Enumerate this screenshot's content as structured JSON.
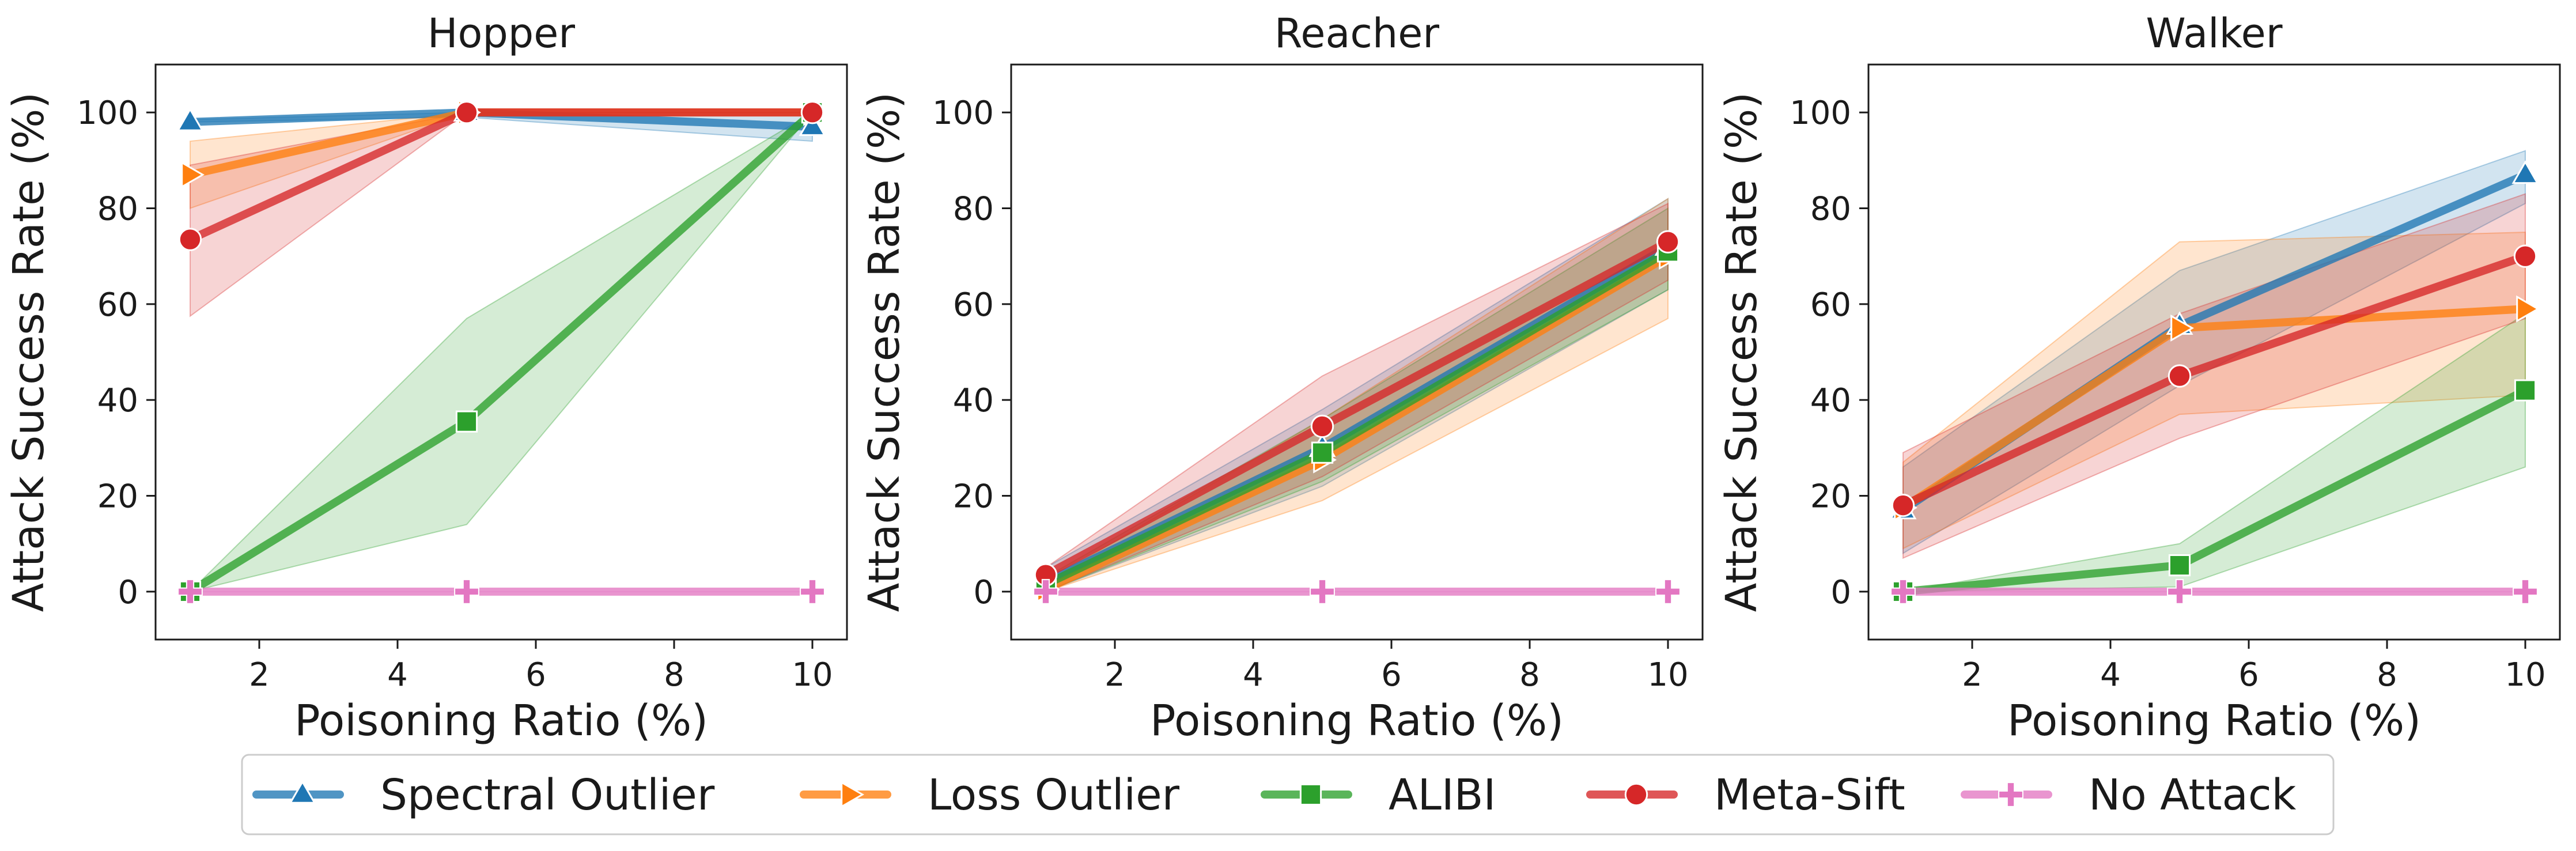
{
  "chart_data": {
    "type": "line",
    "x": [
      1,
      5,
      10
    ],
    "xlabel": "Poisoning Ratio (%)",
    "ylabel": "Attack Success Rate (%)",
    "xlim": [
      0.5,
      10.5
    ],
    "ylim": [
      -10,
      110
    ],
    "xticks": [
      "2",
      "4",
      "6",
      "8",
      "10"
    ],
    "yticks": [
      "0",
      "20",
      "40",
      "60",
      "80",
      "100"
    ],
    "series_meta": [
      {
        "name": "Spectral Outlier",
        "color": "#1f77b4",
        "marker": "triangle"
      },
      {
        "name": "Loss Outlier",
        "color": "#ff7f0e",
        "marker": "triangle-right"
      },
      {
        "name": "ALIBI",
        "color": "#2ca02c",
        "marker": "square"
      },
      {
        "name": "Meta-Sift",
        "color": "#d62728",
        "marker": "circle"
      },
      {
        "name": "No Attack",
        "color": "#e377c2",
        "marker": "plus"
      }
    ],
    "panels": [
      {
        "title": "Hopper",
        "series": [
          {
            "name": "Spectral Outlier",
            "values": [
              98,
              100,
              97
            ],
            "lower": [
              98,
              99,
              94
            ],
            "upper": [
              98.5,
              100,
              100
            ]
          },
          {
            "name": "Loss Outlier",
            "values": [
              87,
              100,
              100
            ],
            "lower": [
              80,
              100,
              100
            ],
            "upper": [
              94,
              100,
              100
            ]
          },
          {
            "name": "ALIBI",
            "values": [
              0,
              35.5,
              100
            ],
            "lower": [
              0,
              14,
              100
            ],
            "upper": [
              0,
              57,
              100
            ]
          },
          {
            "name": "Meta-Sift",
            "values": [
              73.5,
              100,
              100
            ],
            "lower": [
              57.5,
              100,
              100
            ],
            "upper": [
              89,
              100,
              100
            ]
          },
          {
            "name": "No Attack",
            "values": [
              0,
              0,
              0
            ],
            "lower": [
              0,
              0,
              0
            ],
            "upper": [
              0,
              0,
              0
            ]
          }
        ]
      },
      {
        "title": "Reacher",
        "series": [
          {
            "name": "Spectral Outlier",
            "values": [
              2,
              30,
              72
            ],
            "lower": [
              0,
              22,
              63
            ],
            "upper": [
              5,
              38,
              82
            ]
          },
          {
            "name": "Loss Outlier",
            "values": [
              0.5,
              27.5,
              70
            ],
            "lower": [
              0,
              19,
              57
            ],
            "upper": [
              2,
              36,
              82
            ]
          },
          {
            "name": "ALIBI",
            "values": [
              1.5,
              29,
              71
            ],
            "lower": [
              0,
              23,
              63
            ],
            "upper": [
              3,
              36,
              80
            ]
          },
          {
            "name": "Meta-Sift",
            "values": [
              3.5,
              34.5,
              73
            ],
            "lower": [
              0,
              24,
              65
            ],
            "upper": [
              5,
              45,
              81
            ]
          },
          {
            "name": "No Attack",
            "values": [
              0,
              0,
              0
            ],
            "lower": [
              0,
              0,
              0
            ],
            "upper": [
              0,
              0,
              0
            ]
          }
        ]
      },
      {
        "title": "Walker",
        "series": [
          {
            "name": "Spectral Outlier",
            "values": [
              17,
              55.5,
              87
            ],
            "lower": [
              8,
              43,
              81
            ],
            "upper": [
              26,
              67,
              92
            ]
          },
          {
            "name": "Loss Outlier",
            "values": [
              17.5,
              55,
              59
            ],
            "lower": [
              9,
              37,
              41
            ],
            "upper": [
              27,
              73,
              75
            ]
          },
          {
            "name": "ALIBI",
            "values": [
              0,
              5.5,
              42
            ],
            "lower": [
              0,
              1,
              26
            ],
            "upper": [
              0,
              10,
              58
            ]
          },
          {
            "name": "Meta-Sift",
            "values": [
              18,
              45,
              70
            ],
            "lower": [
              7,
              32,
              57
            ],
            "upper": [
              29,
              58,
              83
            ]
          },
          {
            "name": "No Attack",
            "values": [
              0,
              0,
              0
            ],
            "lower": [
              0,
              0,
              0
            ],
            "upper": [
              0,
              0,
              0
            ]
          }
        ]
      }
    ]
  }
}
